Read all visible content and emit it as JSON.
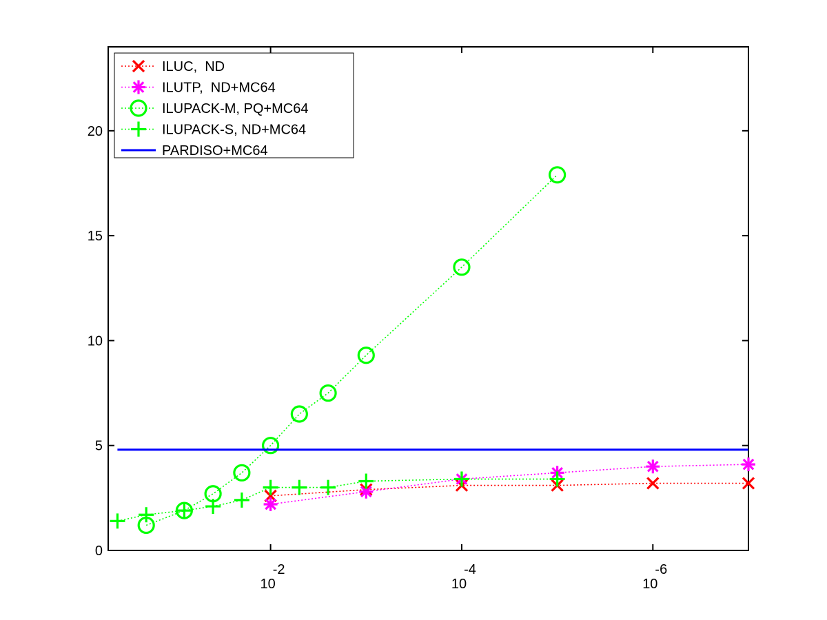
{
  "chart_data": {
    "type": "line",
    "title": "",
    "xlabel": "",
    "ylabel": "",
    "x_scale": "log-reversed",
    "xlim": [
      0.5,
      1e-07
    ],
    "ylim": [
      0,
      24
    ],
    "grid": false,
    "legend_position": "top-left",
    "x_ticks": [
      {
        "value": 0.01,
        "base": "10",
        "exp": "-2"
      },
      {
        "value": 0.0001,
        "base": "10",
        "exp": "-4"
      },
      {
        "value": 1e-06,
        "base": "10",
        "exp": "-6"
      }
    ],
    "y_ticks": [
      {
        "value": 0,
        "label": "0"
      },
      {
        "value": 5,
        "label": "5"
      },
      {
        "value": 10,
        "label": "10"
      },
      {
        "value": 15,
        "label": "15"
      },
      {
        "value": 20,
        "label": "20"
      }
    ],
    "series": [
      {
        "name": "ILUC,  ND",
        "color": "#ff0000",
        "marker": "x",
        "line": "dotted",
        "points": [
          [
            0.01,
            2.6
          ],
          [
            0.001,
            2.9
          ],
          [
            0.0001,
            3.1
          ],
          [
            1e-05,
            3.1
          ],
          [
            1e-06,
            3.2
          ],
          [
            1e-07,
            3.2
          ]
        ]
      },
      {
        "name": "ILUTP,  ND+MC64",
        "color": "#ff00ff",
        "marker": "asterisk",
        "line": "dotted",
        "points": [
          [
            0.01,
            2.2
          ],
          [
            0.001,
            2.8
          ],
          [
            0.0001,
            3.4
          ],
          [
            1e-05,
            3.7
          ],
          [
            1e-06,
            4.0
          ],
          [
            1e-07,
            4.1
          ]
        ]
      },
      {
        "name": "ILUPACK-M, PQ+MC64",
        "color": "#00ff00",
        "marker": "circle",
        "line": "dotted",
        "points": [
          [
            0.2,
            1.2
          ],
          [
            0.08,
            1.9
          ],
          [
            0.04,
            2.7
          ],
          [
            0.02,
            3.7
          ],
          [
            0.01,
            5.0
          ],
          [
            0.005,
            6.5
          ],
          [
            0.0025,
            7.5
          ],
          [
            0.001,
            9.3
          ],
          [
            0.0001,
            13.5
          ],
          [
            1e-05,
            17.9
          ]
        ]
      },
      {
        "name": "ILUPACK-S, ND+MC64",
        "color": "#00ff00",
        "marker": "plus",
        "line": "dotted",
        "points": [
          [
            0.4,
            1.4
          ],
          [
            0.2,
            1.7
          ],
          [
            0.08,
            1.9
          ],
          [
            0.04,
            2.1
          ],
          [
            0.02,
            2.4
          ],
          [
            0.01,
            3.0
          ],
          [
            0.005,
            3.0
          ],
          [
            0.0025,
            3.0
          ],
          [
            0.001,
            3.3
          ],
          [
            0.0001,
            3.4
          ],
          [
            1e-05,
            3.4
          ]
        ]
      },
      {
        "name": "PARDISO+MC64",
        "color": "#0000ff",
        "marker": "none",
        "line": "solid",
        "points": [
          [
            0.4,
            4.8
          ],
          [
            1e-07,
            4.8
          ]
        ]
      }
    ]
  }
}
